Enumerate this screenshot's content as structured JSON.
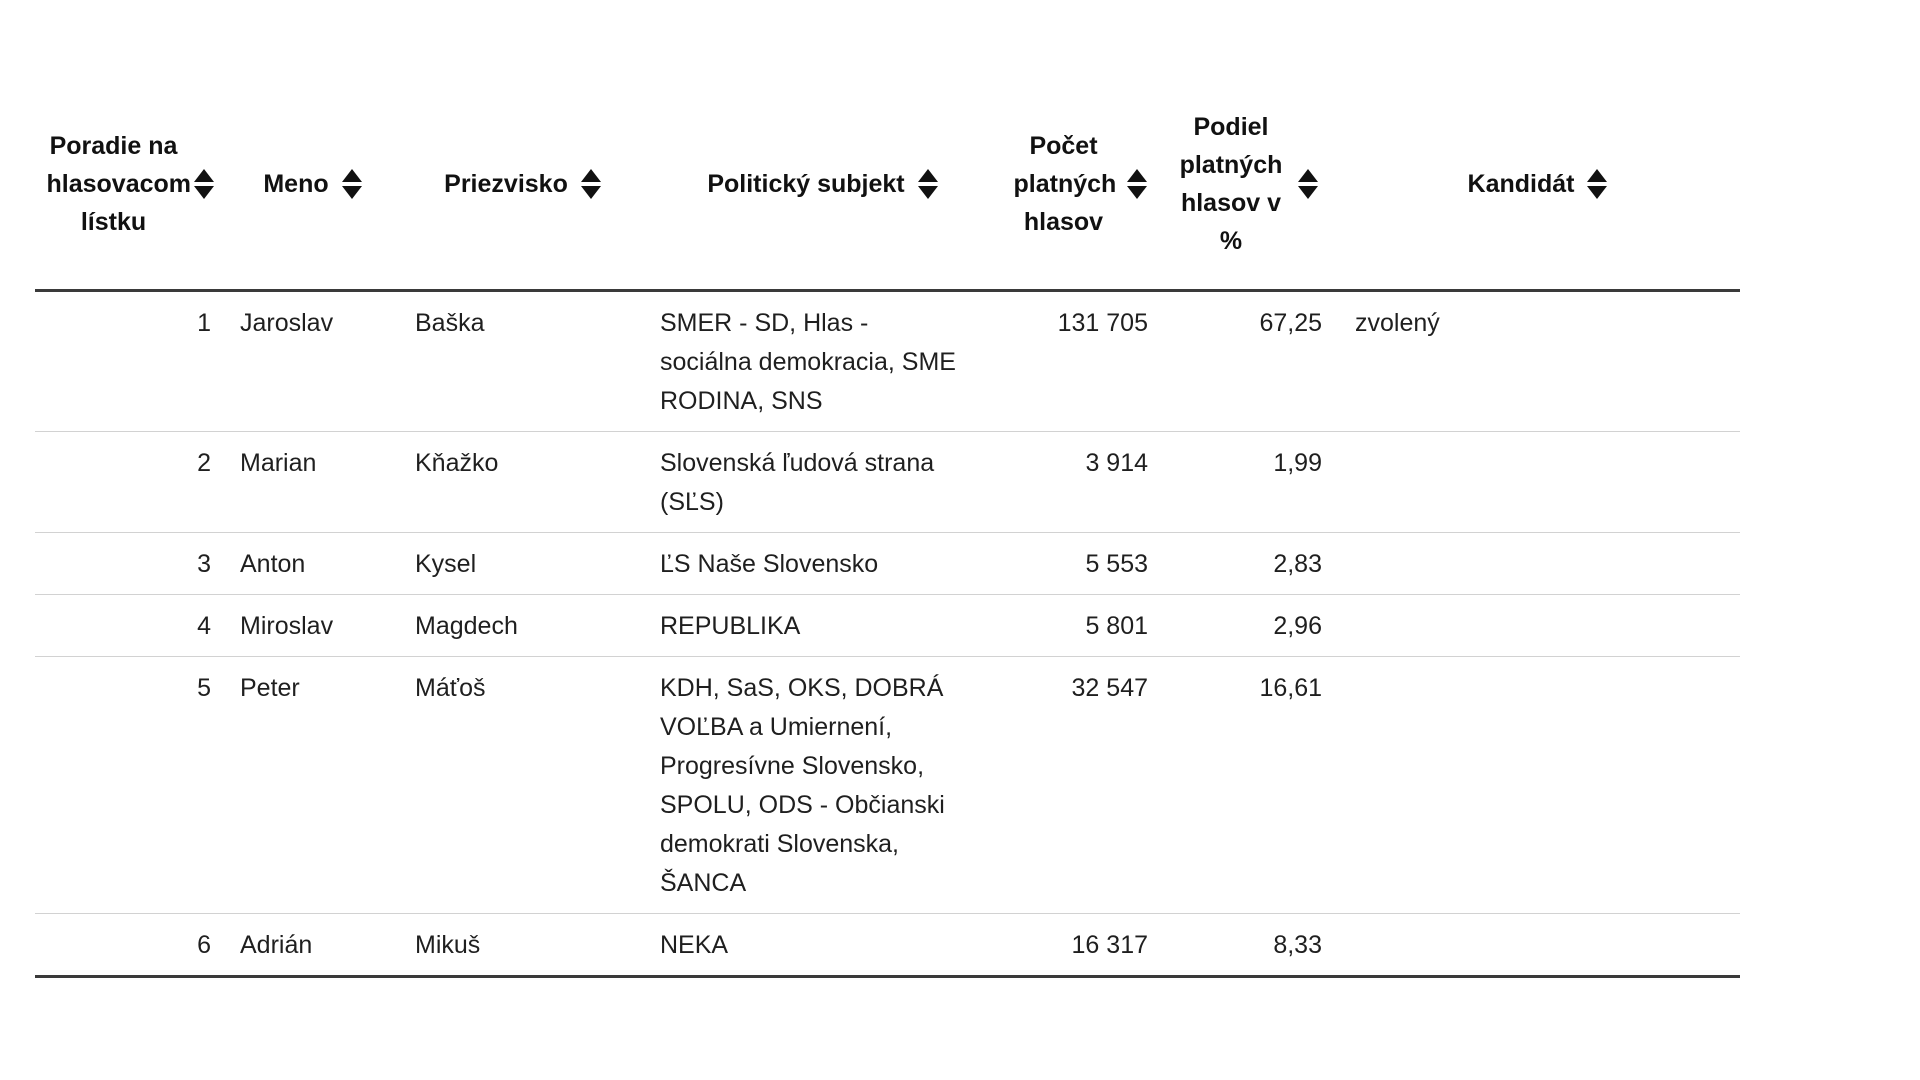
{
  "colors": {
    "background": "#ffffff",
    "header-text": "#111111",
    "body-text": "#1f1f1f",
    "thick-line": "#3a3a3a",
    "thin-line": "#d2d2d2",
    "icon-color": "#111111"
  },
  "icons": {
    "sort-icon": "up-down-filled-triangles"
  },
  "table": {
    "columns": [
      {
        "key": "poradie",
        "label": "Poradie na hlasovacom lístku"
      },
      {
        "key": "meno",
        "label": "Meno"
      },
      {
        "key": "priezvisko",
        "label": "Priezvisko"
      },
      {
        "key": "subjekt",
        "label": "Politický subjekt"
      },
      {
        "key": "hlasy",
        "label": "Počet platných hlasov"
      },
      {
        "key": "podiel",
        "label": "Podiel platných hlasov v %"
      },
      {
        "key": "kandidat",
        "label": "Kandidát"
      }
    ],
    "rows": [
      {
        "poradie": "1",
        "meno": "Jaroslav",
        "priezvisko": "Baška",
        "subjekt": "SMER - SD, Hlas - sociálna demokracia, SME RODINA, SNS",
        "hlasy": "131 705",
        "podiel": "67,25",
        "kandidat": "zvolený"
      },
      {
        "poradie": "2",
        "meno": "Marian",
        "priezvisko": "Kňažko",
        "subjekt": "Slovenská ľudová strana (SĽS)",
        "hlasy": "3 914",
        "podiel": "1,99",
        "kandidat": ""
      },
      {
        "poradie": "3",
        "meno": "Anton",
        "priezvisko": "Kysel",
        "subjekt": "ĽS Naše Slovensko",
        "hlasy": "5 553",
        "podiel": "2,83",
        "kandidat": ""
      },
      {
        "poradie": "4",
        "meno": "Miroslav",
        "priezvisko": "Magdech",
        "subjekt": "REPUBLIKA",
        "hlasy": "5 801",
        "podiel": "2,96",
        "kandidat": ""
      },
      {
        "poradie": "5",
        "meno": "Peter",
        "priezvisko": "Máťoš",
        "subjekt": "KDH, SaS, OKS, DOBRÁ VOĽBA a Umiernení, Progresívne Slovensko, SPOLU, ODS - Občianski demokrati Slovenska, ŠANCA",
        "hlasy": "32 547",
        "podiel": "16,61",
        "kandidat": ""
      },
      {
        "poradie": "6",
        "meno": "Adrián",
        "priezvisko": "Mikuš",
        "subjekt": "NEKA",
        "hlasy": "16 317",
        "podiel": "8,33",
        "kandidat": ""
      }
    ]
  }
}
